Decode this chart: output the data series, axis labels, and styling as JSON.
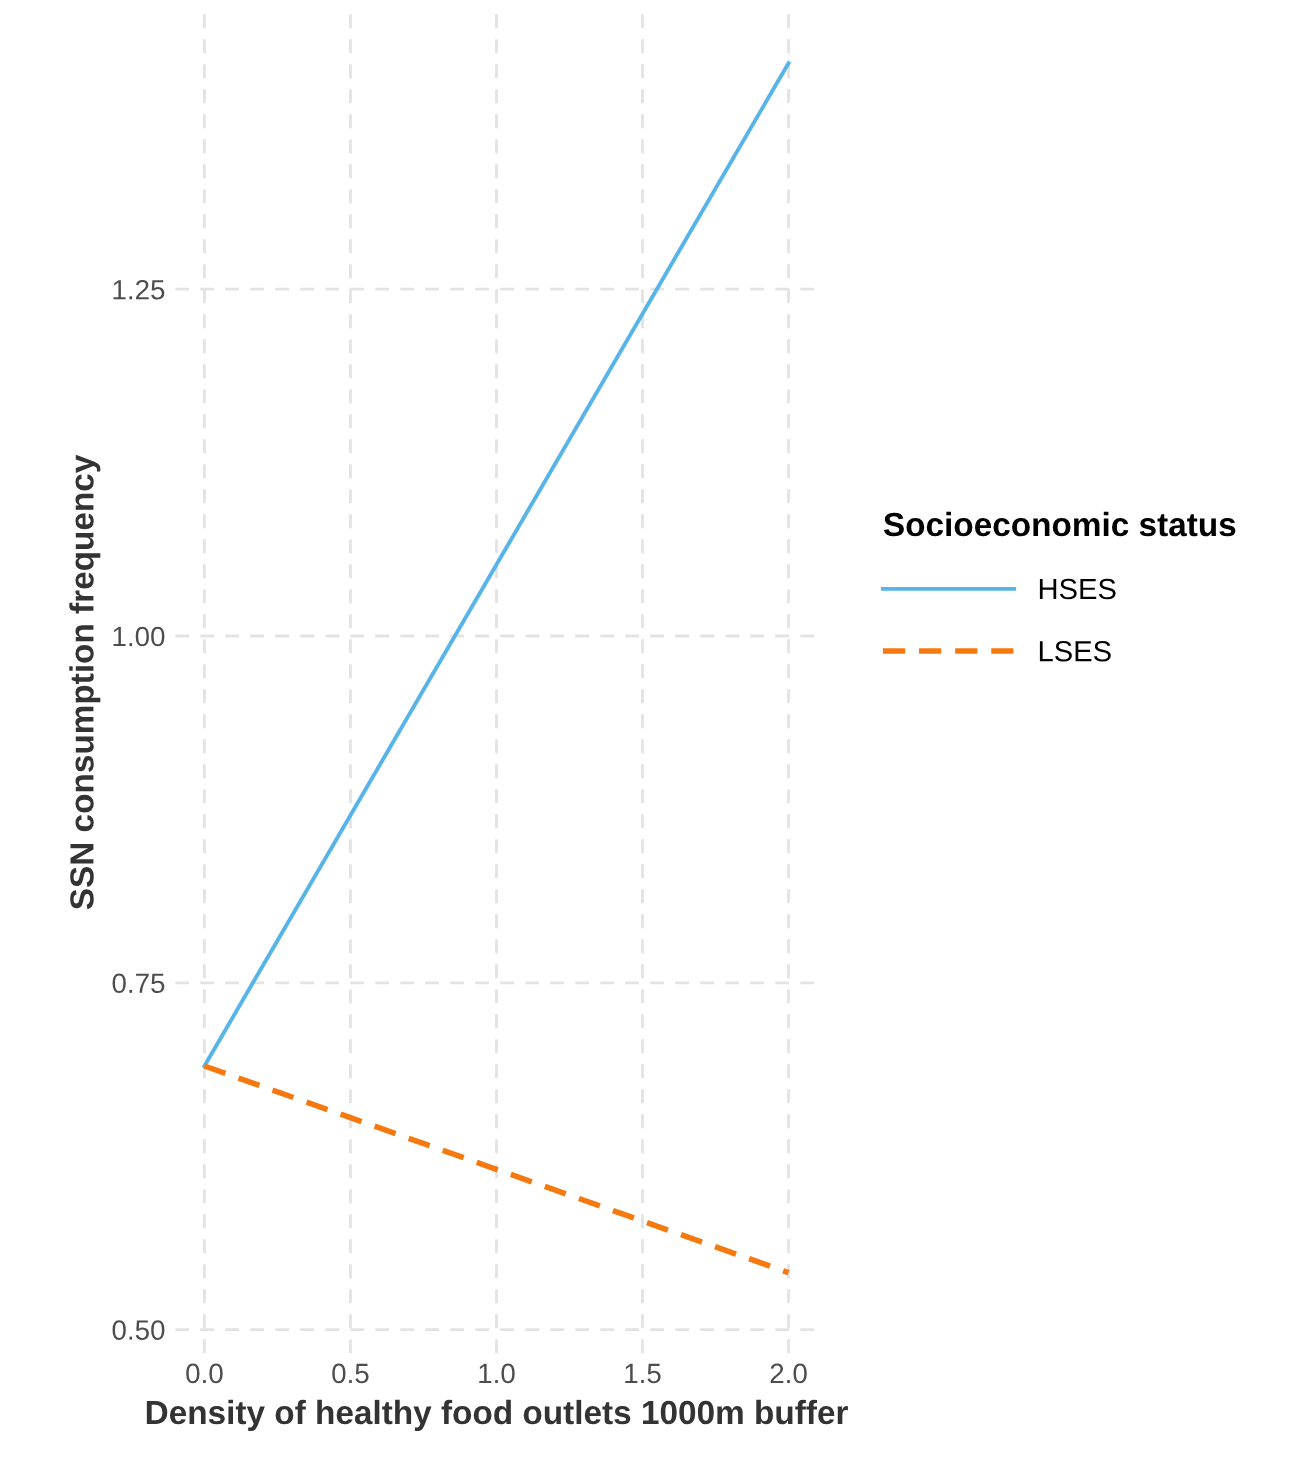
{
  "chart_data": {
    "type": "line",
    "xlabel": "Density of healthy food outlets 1000m buffer",
    "ylabel": "SSN consumption frequency",
    "legend_title": "Socioeconomic status",
    "x": [
      0,
      2
    ],
    "series": [
      {
        "name": "HSES",
        "color": "#56b4e9",
        "values": [
          0.69,
          1.413
        ],
        "line_style": "solid"
      },
      {
        "name": "LSES",
        "color": "#f5790f",
        "values": [
          0.69,
          0.541
        ],
        "line_style": "dashed"
      }
    ],
    "xlim": [
      -0.1,
      2.1
    ],
    "ylim": [
      0.483,
      1.45
    ],
    "xticks": [
      {
        "value": 0,
        "label": "0.0"
      },
      {
        "value": 0.5,
        "label": "0.5"
      },
      {
        "value": 1,
        "label": "1.0"
      },
      {
        "value": 1.5,
        "label": "1.5"
      },
      {
        "value": 2,
        "label": "2.0"
      }
    ],
    "yticks": [
      {
        "value": 0.5,
        "label": "0.50"
      },
      {
        "value": 0.75,
        "label": "0.75"
      },
      {
        "value": 1,
        "label": "1.00"
      },
      {
        "value": 1.25,
        "label": "1.25"
      }
    ],
    "grid": true,
    "legend": "right",
    "marker": "none"
  }
}
